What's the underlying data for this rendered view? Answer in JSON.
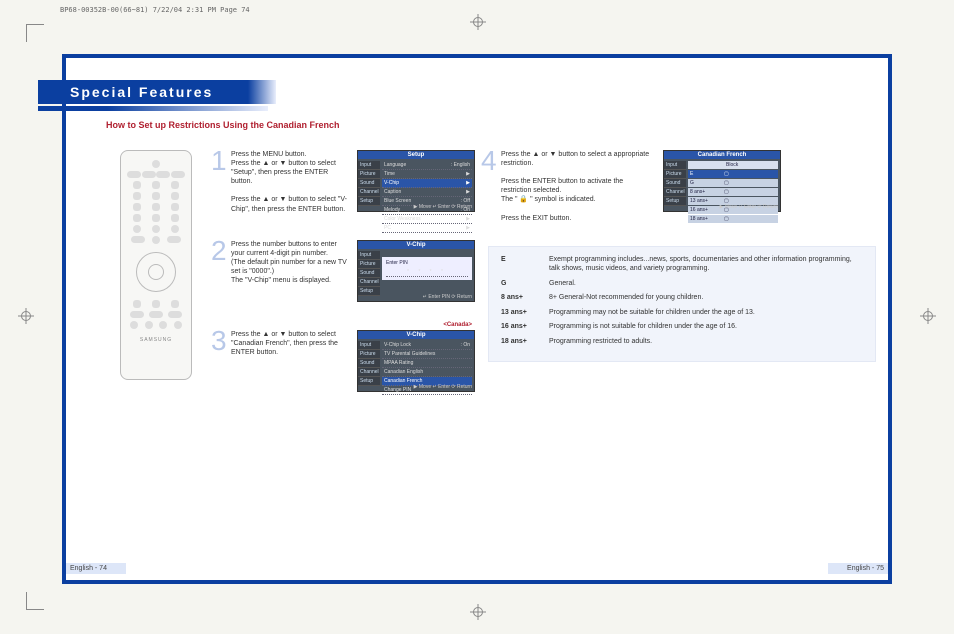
{
  "print_header": "BP68-00352B-00(66~81)  7/22/04  2:31 PM  Page 74",
  "title": "Special Features",
  "subtitle": "How to Set up Restrictions Using the Canadian French",
  "footer_left": "English - 74",
  "footer_right": "English - 75",
  "steps": {
    "s1": {
      "num": "1",
      "text": "Press the MENU button.\nPress the ▲ or ▼ button to select \"Setup\", then press the ENTER button.\n\nPress the ▲ or ▼ button to select \"V-Chip\", then press the ENTER button."
    },
    "s2": {
      "num": "2",
      "text": "Press the number buttons to enter your current 4-digit pin number.\n(The default pin number for a new TV set is \"0000\".)\nThe \"V-Chip\" menu is displayed."
    },
    "s3": {
      "num": "3",
      "text": "Press the ▲ or ▼ button to select \"Canadian French\", then press the ENTER button.",
      "label": "<Canada>"
    },
    "s4": {
      "num": "4",
      "text_a": "Press the ▲ or ▼ button to select a appropriate restriction.",
      "text_b": "Press the ENTER button to activate the restriction selected.\nThe \" 🔒 \" symbol is indicated.",
      "text_c": "Press the EXIT button."
    }
  },
  "osd": {
    "side": [
      "Input",
      "Picture",
      "Sound",
      "Channel",
      "Setup"
    ],
    "s1": {
      "title": "Setup",
      "items": [
        {
          "l": "Language",
          "r": ": English"
        },
        {
          "l": "Time",
          "r": "▶"
        },
        {
          "l": "V-Chip",
          "r": "▶",
          "hilite": true
        },
        {
          "l": "Caption",
          "r": "▶"
        },
        {
          "l": "Blue Screen",
          "r": ": Off"
        },
        {
          "l": "Melody",
          "r": ": On"
        },
        {
          "l": "Color Weakness",
          "r": "▶"
        },
        {
          "l": "PC",
          "r": "▶"
        }
      ],
      "bottom": "▶ Move   ↵ Enter   ⟳ Return"
    },
    "s2": {
      "title": "V-Chip",
      "center": "Enter PIN",
      "dots": "* * * *",
      "bottom": "↵ Enter PIN   ⟳ Return"
    },
    "s3": {
      "title": "V-Chip",
      "items": [
        {
          "l": "V-Chip Lock",
          "r": ": On"
        },
        {
          "l": "TV Parental Guidelines"
        },
        {
          "l": "MPAA Rating"
        },
        {
          "l": "Canadian English"
        },
        {
          "l": "Canadian French",
          "hilite": true
        },
        {
          "l": "Change PIN"
        }
      ],
      "bottom": "▶ Move   ↵ Enter   ⟳ Return"
    },
    "s4": {
      "title": "Canadian French",
      "cols": [
        "Block"
      ],
      "rows": [
        "E",
        "G",
        "8 ans+",
        "13 ans+",
        "16 ans+",
        "18 ans+"
      ],
      "bottom": "▶ Move   ↵ Enter   ⟳ Return"
    }
  },
  "ratings": [
    {
      "k": "E",
      "v": "Exempt programming includes...news, sports, documentaries and other information programming, talk shows, music videos, and variety programming."
    },
    {
      "k": "G",
      "v": "General."
    },
    {
      "k": "8  ans+",
      "v": "8+ General-Not recommended for young children."
    },
    {
      "k": "13 ans+",
      "v": "Programming may not be suitable for children under the age of 13."
    },
    {
      "k": "16 ans+",
      "v": "Programming is not suitable for children under the age of 16."
    },
    {
      "k": "18 ans+",
      "v": "Programming restricted to adults."
    }
  ],
  "remote_brand": "SAMSUNG"
}
